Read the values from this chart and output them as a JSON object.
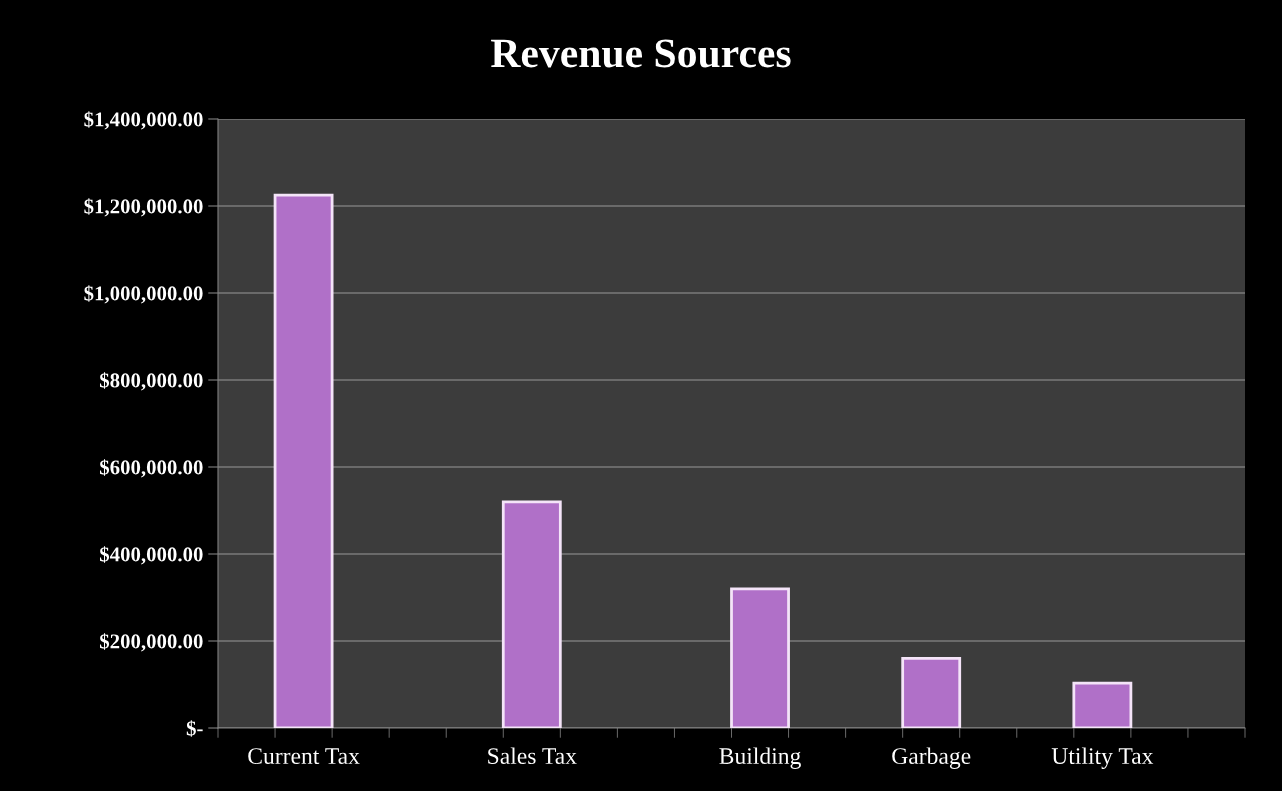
{
  "chart_data": {
    "type": "bar",
    "title": "Revenue Sources",
    "categories": [
      null,
      "Current Tax",
      null,
      null,
      null,
      "Sales Tax",
      null,
      null,
      null,
      "Building",
      null,
      null,
      "Garbage",
      null,
      null,
      "Utility Tax",
      null,
      null
    ],
    "values": [
      null,
      1225000,
      null,
      null,
      null,
      520000,
      null,
      null,
      null,
      320000,
      null,
      null,
      160000,
      null,
      null,
      103000,
      null,
      null
    ],
    "color": "#b070c8",
    "ylim": [
      0,
      1400000
    ],
    "yticks": [
      {
        "value": 0,
        "label": "$-"
      },
      {
        "value": 200000,
        "label": "$200,000.00"
      },
      {
        "value": 400000,
        "label": "$400,000.00"
      },
      {
        "value": 600000,
        "label": "$600,000.00"
      },
      {
        "value": 800000,
        "label": "$800,000.00"
      },
      {
        "value": 1000000,
        "label": "$1,000,000.00"
      },
      {
        "value": 1200000,
        "label": "$1,200,000.00"
      },
      {
        "value": 1400000,
        "label": "$1,400,000.00"
      }
    ],
    "grid": "y"
  }
}
